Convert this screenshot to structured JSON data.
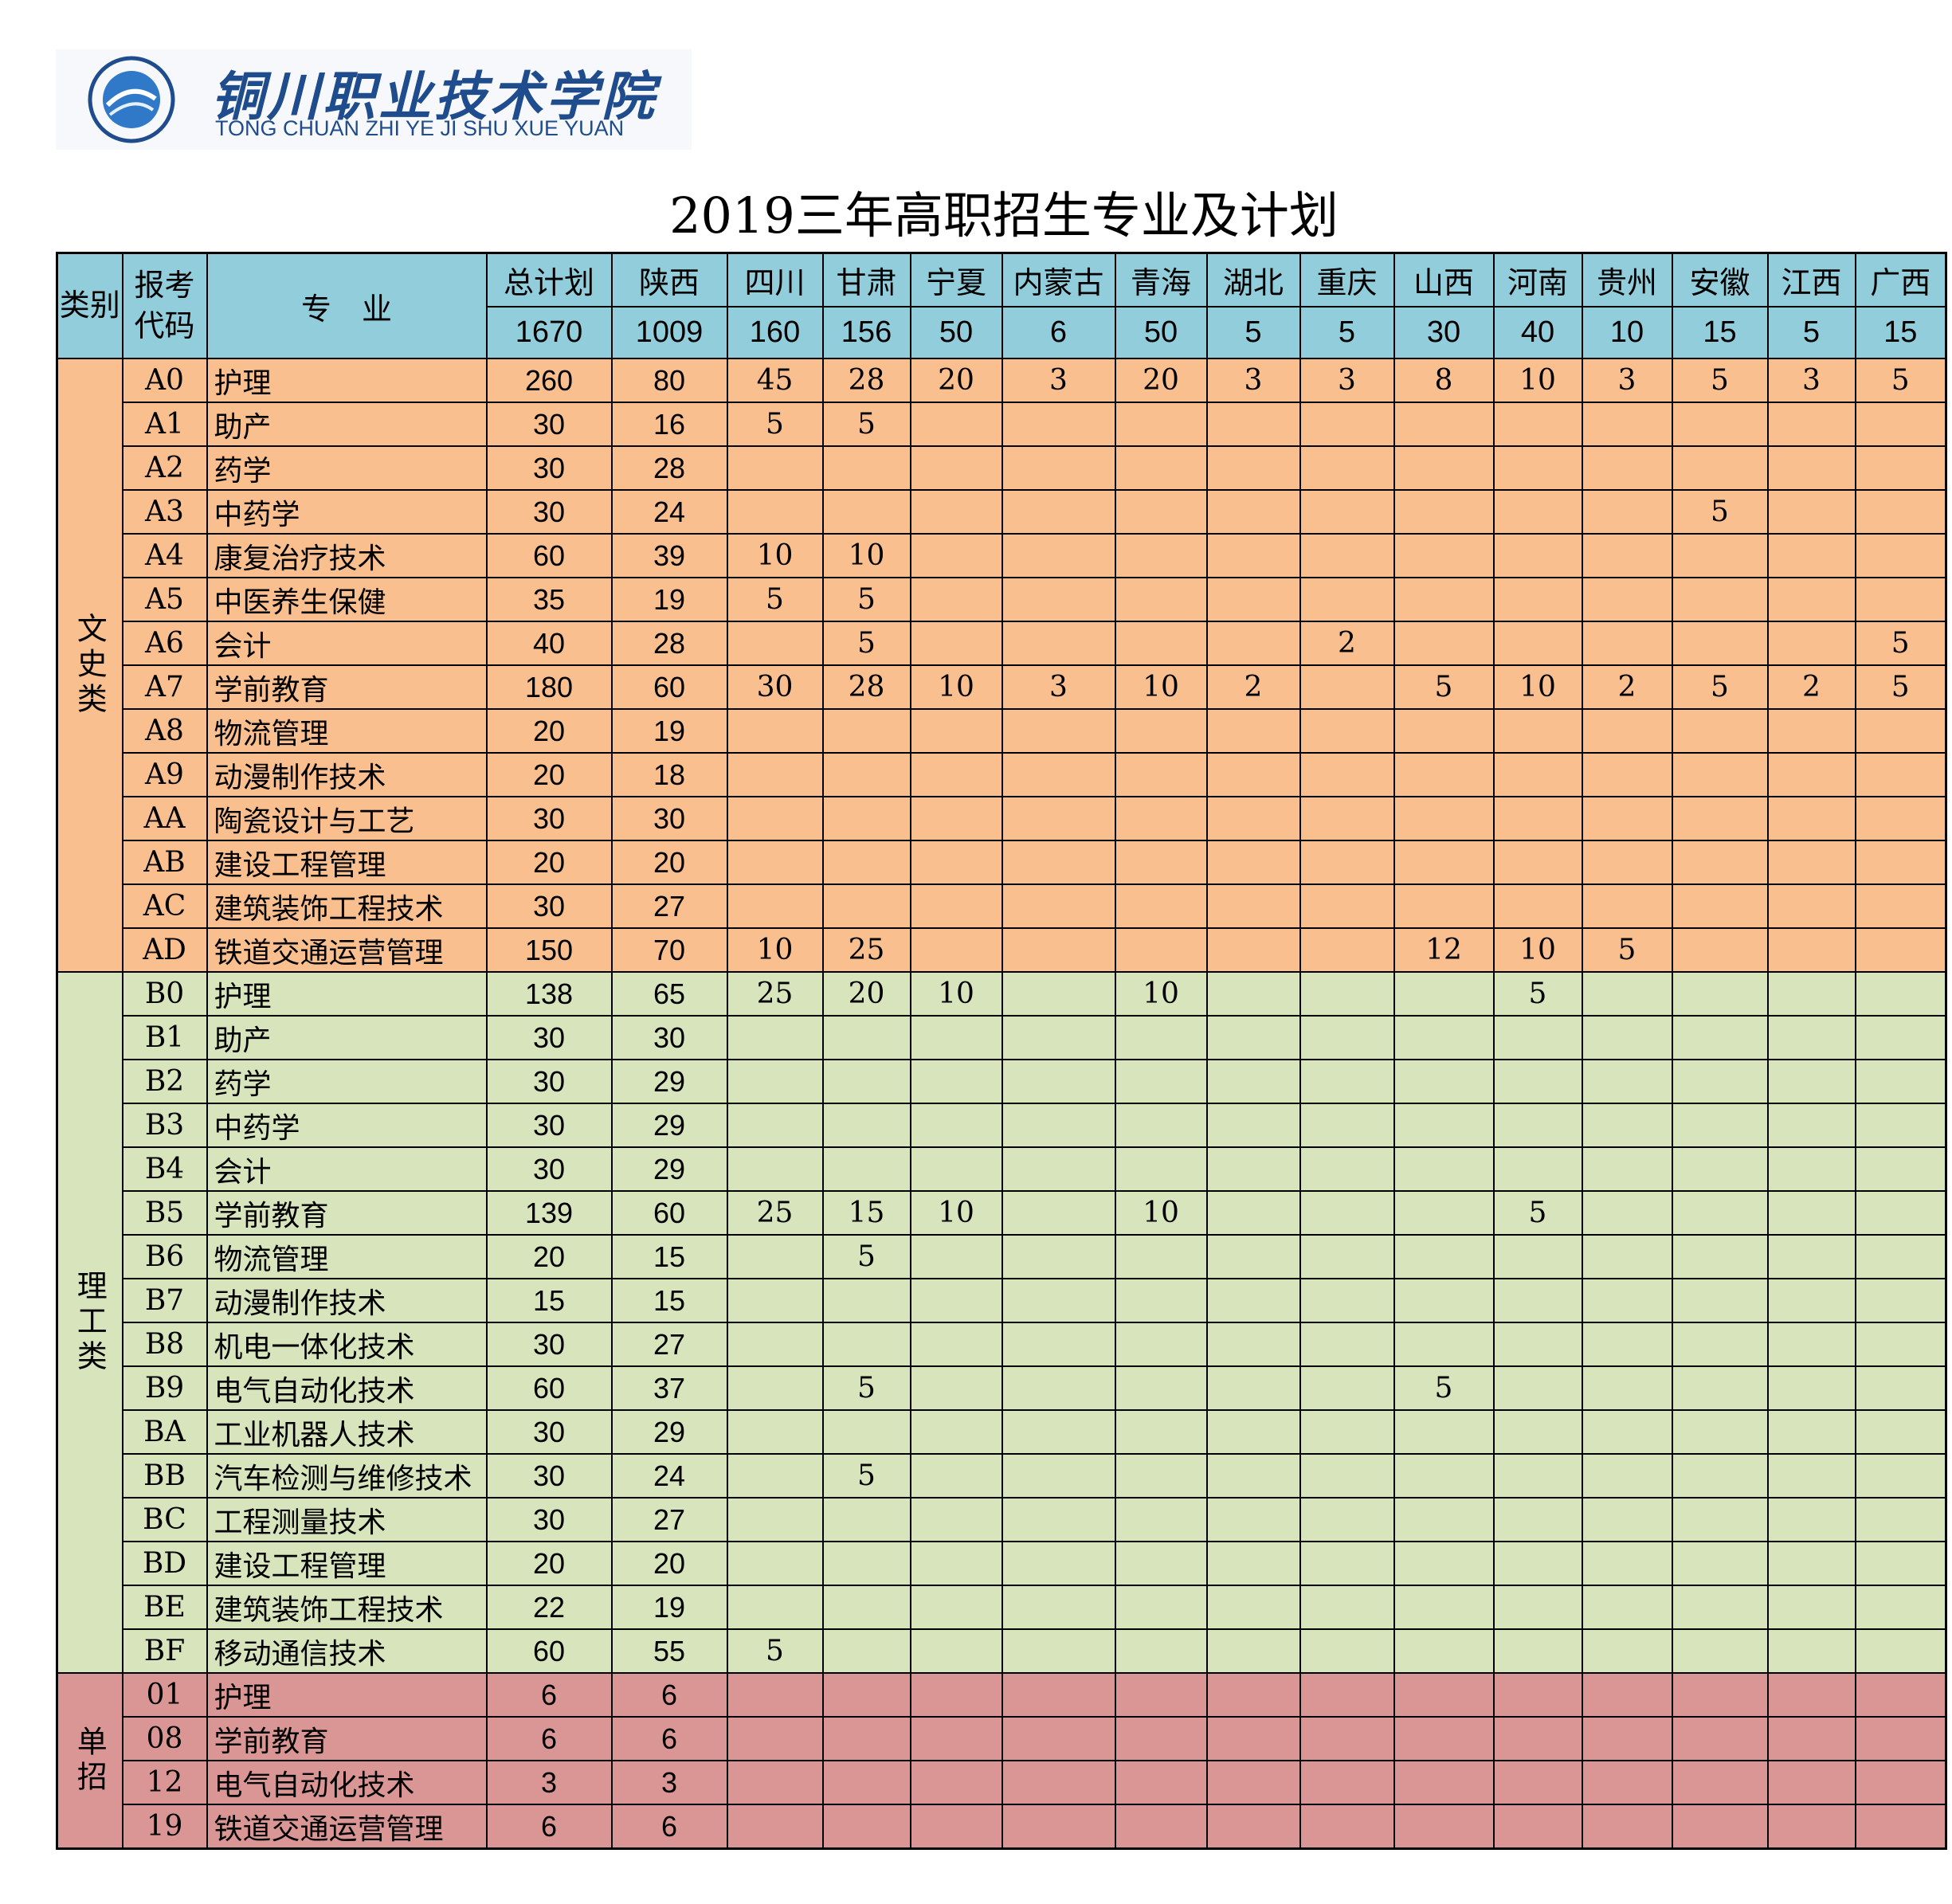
{
  "logo": {
    "name": "铜川职业技术学院",
    "pinyin": "TONG CHUAN ZHI YE JI SHU XUE YUAN"
  },
  "title": "2019三年高职招生专业及计划",
  "header": {
    "labels": [
      "类别",
      "报考代码",
      "专　业"
    ],
    "columns": [
      "总计划",
      "陕西",
      "四川",
      "甘肃",
      "宁夏",
      "内蒙古",
      "青海",
      "湖北",
      "重庆",
      "山西",
      "河南",
      "贵州",
      "安徽",
      "江西",
      "广西"
    ],
    "totals": [
      1670,
      1009,
      160,
      156,
      50,
      6,
      50,
      5,
      5,
      30,
      40,
      10,
      15,
      5,
      15
    ]
  },
  "groups": [
    {
      "label": "文史类",
      "rows": [
        [
          "A0",
          "护理",
          260,
          80,
          45,
          28,
          20,
          3,
          20,
          3,
          3,
          8,
          10,
          3,
          5,
          3,
          5
        ],
        [
          "A1",
          "助产",
          30,
          16,
          5,
          5,
          null,
          null,
          null,
          null,
          null,
          null,
          null,
          null,
          null,
          null,
          null
        ],
        [
          "A2",
          "药学",
          30,
          28,
          null,
          null,
          null,
          null,
          null,
          null,
          null,
          null,
          null,
          null,
          null,
          null,
          null
        ],
        [
          "A3",
          "中药学",
          30,
          24,
          null,
          null,
          null,
          null,
          null,
          null,
          null,
          null,
          null,
          null,
          5,
          null,
          null
        ],
        [
          "A4",
          "康复治疗技术",
          60,
          39,
          10,
          10,
          null,
          null,
          null,
          null,
          null,
          null,
          null,
          null,
          null,
          null,
          null
        ],
        [
          "A5",
          "中医养生保健",
          35,
          19,
          5,
          5,
          null,
          null,
          null,
          null,
          null,
          null,
          null,
          null,
          null,
          null,
          null
        ],
        [
          "A6",
          "会计",
          40,
          28,
          null,
          5,
          null,
          null,
          null,
          null,
          2,
          null,
          null,
          null,
          null,
          null,
          5
        ],
        [
          "A7",
          "学前教育",
          180,
          60,
          30,
          28,
          10,
          3,
          10,
          2,
          null,
          5,
          10,
          2,
          5,
          2,
          5
        ],
        [
          "A8",
          "物流管理",
          20,
          19,
          null,
          null,
          null,
          null,
          null,
          null,
          null,
          null,
          null,
          null,
          null,
          null,
          null
        ],
        [
          "A9",
          "动漫制作技术",
          20,
          18,
          null,
          null,
          null,
          null,
          null,
          null,
          null,
          null,
          null,
          null,
          null,
          null,
          null
        ],
        [
          "AA",
          "陶瓷设计与工艺",
          30,
          30,
          null,
          null,
          null,
          null,
          null,
          null,
          null,
          null,
          null,
          null,
          null,
          null,
          null
        ],
        [
          "AB",
          "建设工程管理",
          20,
          20,
          null,
          null,
          null,
          null,
          null,
          null,
          null,
          null,
          null,
          null,
          null,
          null,
          null
        ],
        [
          "AC",
          "建筑装饰工程技术",
          30,
          27,
          null,
          null,
          null,
          null,
          null,
          null,
          null,
          null,
          null,
          null,
          null,
          null,
          null
        ],
        [
          "AD",
          "铁道交通运营管理",
          150,
          70,
          10,
          25,
          null,
          null,
          null,
          null,
          null,
          12,
          10,
          5,
          null,
          null,
          null
        ]
      ]
    },
    {
      "label": "理工类",
      "rows": [
        [
          "B0",
          "护理",
          138,
          65,
          25,
          20,
          10,
          null,
          10,
          null,
          null,
          null,
          5,
          null,
          null,
          null,
          null
        ],
        [
          "B1",
          "助产",
          30,
          30,
          null,
          null,
          null,
          null,
          null,
          null,
          null,
          null,
          null,
          null,
          null,
          null,
          null
        ],
        [
          "B2",
          "药学",
          30,
          29,
          null,
          null,
          null,
          null,
          null,
          null,
          null,
          null,
          null,
          null,
          null,
          null,
          null
        ],
        [
          "B3",
          "中药学",
          30,
          29,
          null,
          null,
          null,
          null,
          null,
          null,
          null,
          null,
          null,
          null,
          null,
          null,
          null
        ],
        [
          "B4",
          "会计",
          30,
          29,
          null,
          null,
          null,
          null,
          null,
          null,
          null,
          null,
          null,
          null,
          null,
          null,
          null
        ],
        [
          "B5",
          "学前教育",
          139,
          60,
          25,
          15,
          10,
          null,
          10,
          null,
          null,
          null,
          5,
          null,
          null,
          null,
          null
        ],
        [
          "B6",
          "物流管理",
          20,
          15,
          null,
          5,
          null,
          null,
          null,
          null,
          null,
          null,
          null,
          null,
          null,
          null,
          null
        ],
        [
          "B7",
          "动漫制作技术",
          15,
          15,
          null,
          null,
          null,
          null,
          null,
          null,
          null,
          null,
          null,
          null,
          null,
          null,
          null
        ],
        [
          "B8",
          "机电一体化技术",
          30,
          27,
          null,
          null,
          null,
          null,
          null,
          null,
          null,
          null,
          null,
          null,
          null,
          null,
          null
        ],
        [
          "B9",
          "电气自动化技术",
          60,
          37,
          null,
          5,
          null,
          null,
          null,
          null,
          null,
          5,
          null,
          null,
          null,
          null,
          null
        ],
        [
          "BA",
          "工业机器人技术",
          30,
          29,
          null,
          null,
          null,
          null,
          null,
          null,
          null,
          null,
          null,
          null,
          null,
          null,
          null
        ],
        [
          "BB",
          "汽车检测与维修技术",
          30,
          24,
          null,
          5,
          null,
          null,
          null,
          null,
          null,
          null,
          null,
          null,
          null,
          null,
          null
        ],
        [
          "BC",
          "工程测量技术",
          30,
          27,
          null,
          null,
          null,
          null,
          null,
          null,
          null,
          null,
          null,
          null,
          null,
          null,
          null
        ],
        [
          "BD",
          "建设工程管理",
          20,
          20,
          null,
          null,
          null,
          null,
          null,
          null,
          null,
          null,
          null,
          null,
          null,
          null,
          null
        ],
        [
          "BE",
          "建筑装饰工程技术",
          22,
          19,
          null,
          null,
          null,
          null,
          null,
          null,
          null,
          null,
          null,
          null,
          null,
          null,
          null
        ],
        [
          "BF",
          "移动通信技术",
          60,
          55,
          5,
          null,
          null,
          null,
          null,
          null,
          null,
          null,
          null,
          null,
          null,
          null,
          null
        ]
      ]
    },
    {
      "label": "单招",
      "rows": [
        [
          "01",
          "护理",
          6,
          6,
          null,
          null,
          null,
          null,
          null,
          null,
          null,
          null,
          null,
          null,
          null,
          null,
          null
        ],
        [
          "08",
          "学前教育",
          6,
          6,
          null,
          null,
          null,
          null,
          null,
          null,
          null,
          null,
          null,
          null,
          null,
          null,
          null
        ],
        [
          "12",
          "电气自动化技术",
          3,
          3,
          null,
          null,
          null,
          null,
          null,
          null,
          null,
          null,
          null,
          null,
          null,
          null,
          null
        ],
        [
          "19",
          "铁道交通运营管理",
          6,
          6,
          null,
          null,
          null,
          null,
          null,
          null,
          null,
          null,
          null,
          null,
          null,
          null,
          null
        ]
      ]
    }
  ]
}
